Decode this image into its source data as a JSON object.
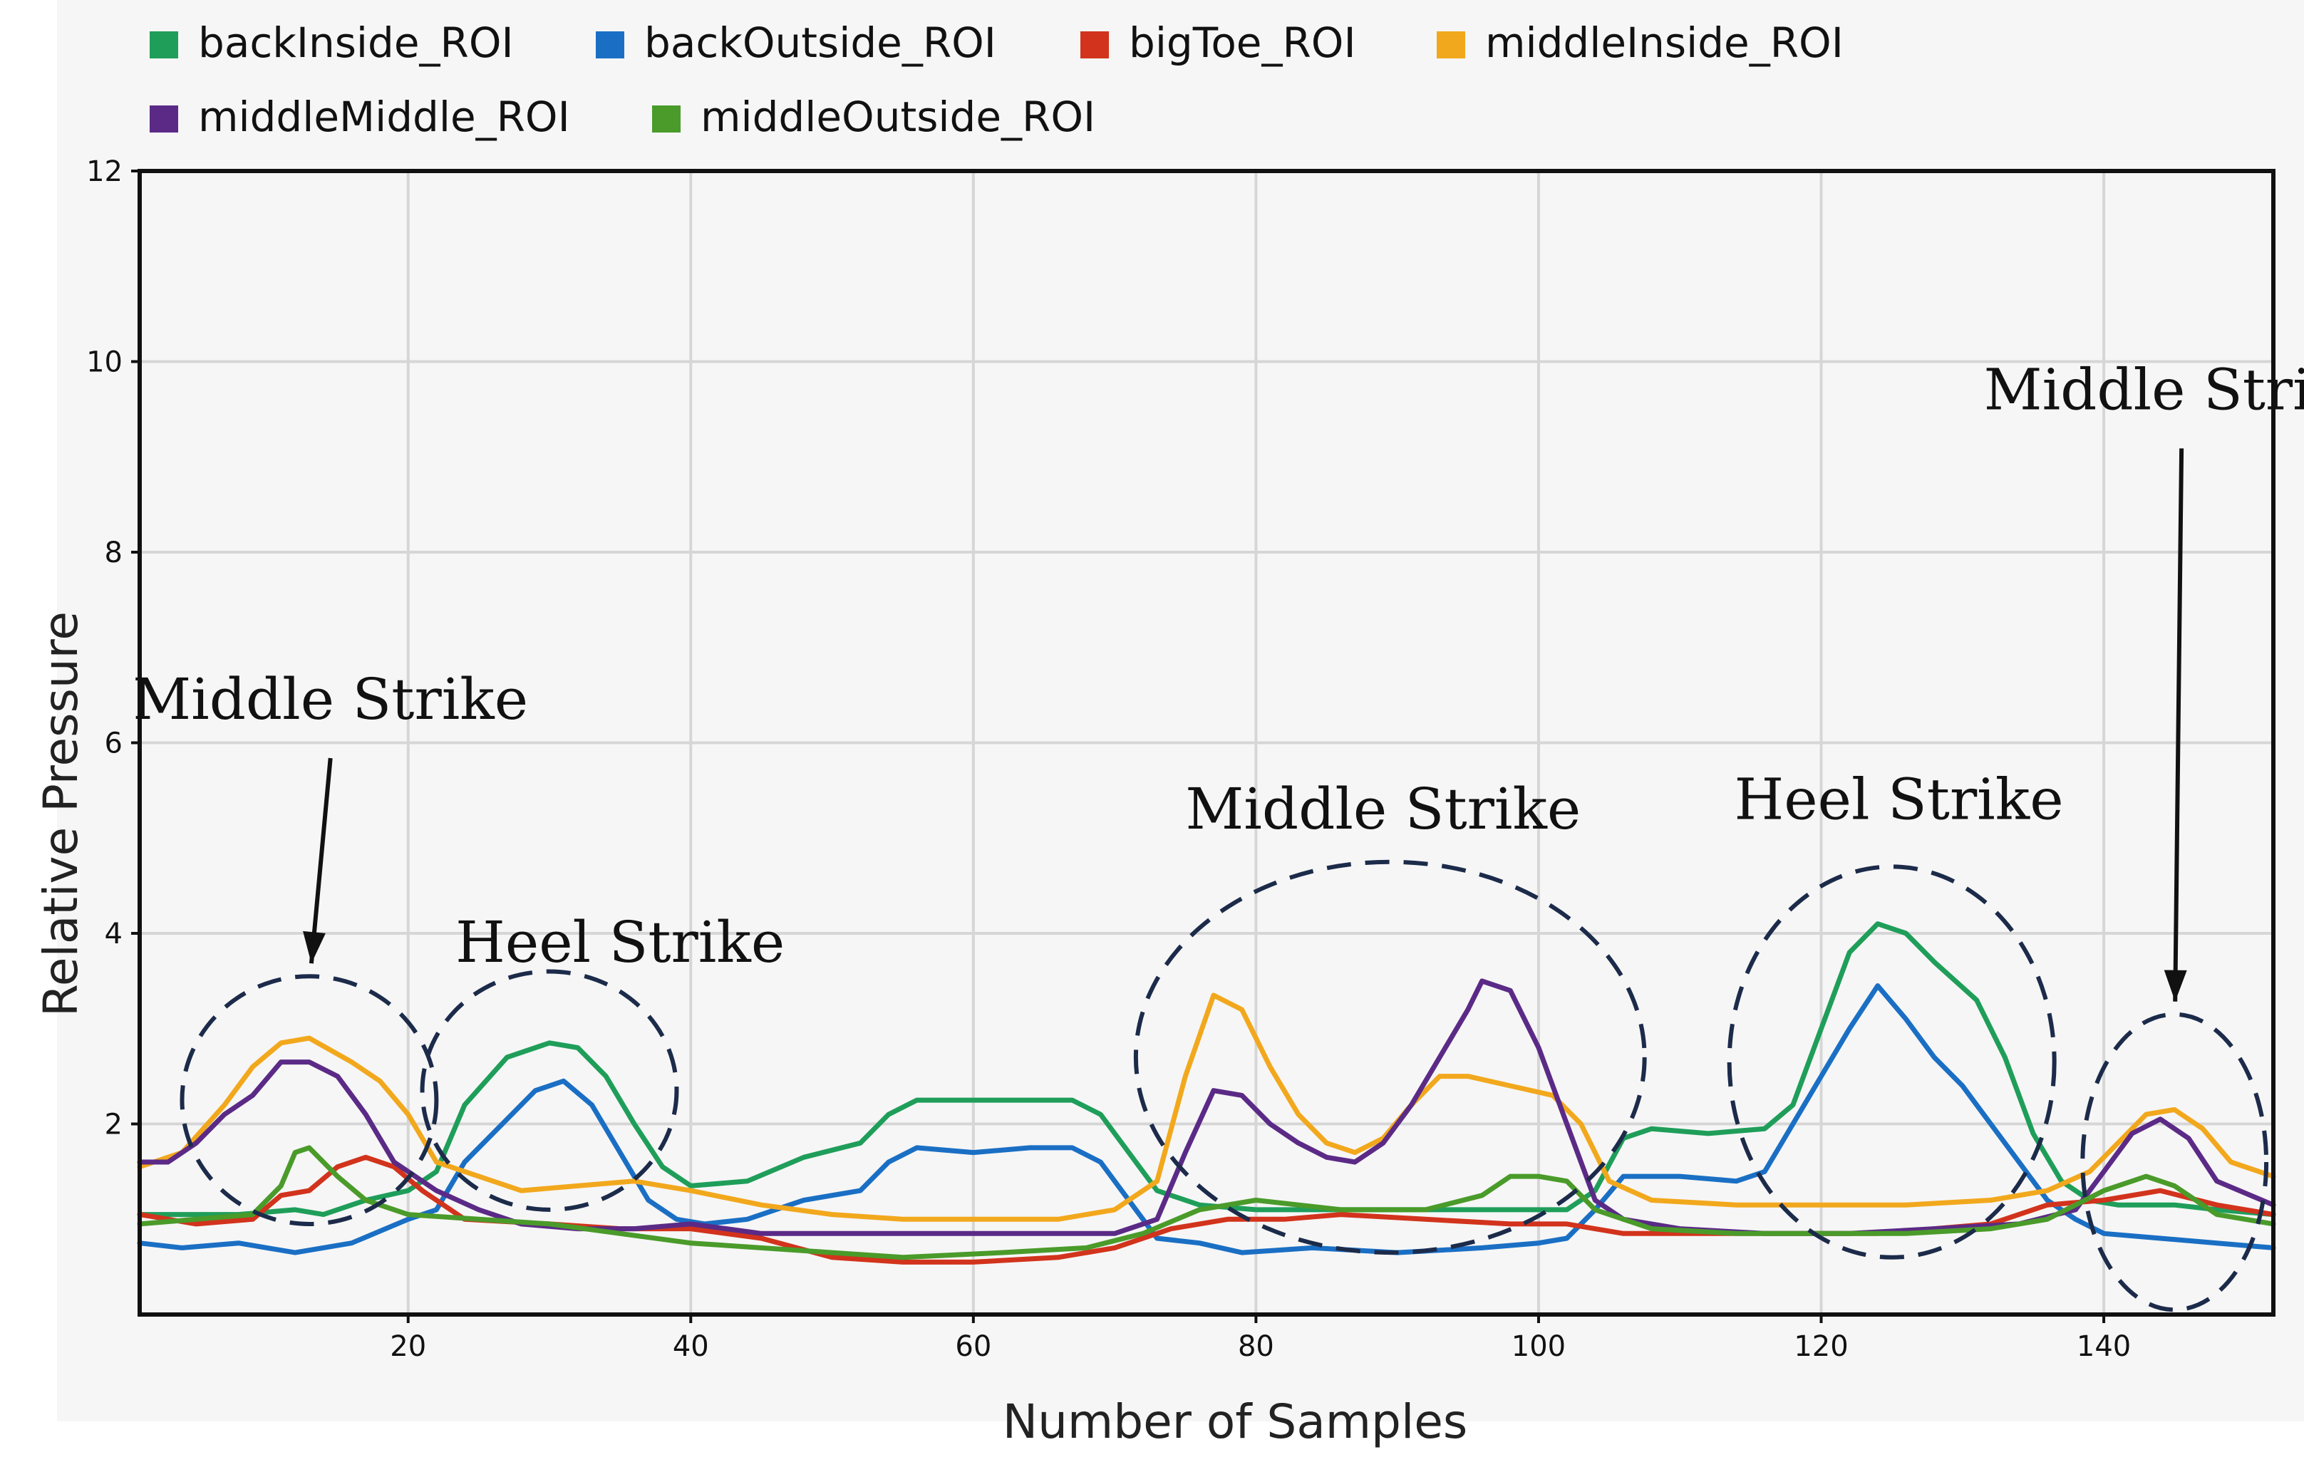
{
  "chart_data": {
    "type": "line",
    "title": "",
    "xlabel": "Number of Samples",
    "ylabel": "Relative Pressure",
    "xlim": [
      1,
      152
    ],
    "ylim": [
      0,
      12
    ],
    "grid": true,
    "legend_position": "top",
    "x_ticks": [
      20,
      40,
      60,
      80,
      100,
      120,
      140
    ],
    "y_ticks": [
      2,
      4,
      6,
      8,
      10,
      12
    ],
    "x_tick_labels": [
      "20",
      "40",
      "60",
      "80",
      "100",
      "120",
      "140"
    ],
    "y_tick_labels": [
      "2",
      "4",
      "6",
      "8",
      "10",
      "12"
    ],
    "series": [
      {
        "name": "backInside_ROI",
        "color": "#1f9e5a",
        "points": [
          [
            1,
            1.05
          ],
          [
            8,
            1.05
          ],
          [
            12,
            1.1
          ],
          [
            14,
            1.05
          ],
          [
            17,
            1.2
          ],
          [
            20,
            1.3
          ],
          [
            22,
            1.5
          ],
          [
            24,
            2.2
          ],
          [
            27,
            2.7
          ],
          [
            30,
            2.85
          ],
          [
            32,
            2.8
          ],
          [
            34,
            2.5
          ],
          [
            36,
            2.0
          ],
          [
            38,
            1.55
          ],
          [
            40,
            1.35
          ],
          [
            44,
            1.4
          ],
          [
            48,
            1.65
          ],
          [
            52,
            1.8
          ],
          [
            54,
            2.1
          ],
          [
            56,
            2.25
          ],
          [
            60,
            2.25
          ],
          [
            64,
            2.25
          ],
          [
            67,
            2.25
          ],
          [
            69,
            2.1
          ],
          [
            71,
            1.7
          ],
          [
            73,
            1.3
          ],
          [
            76,
            1.15
          ],
          [
            80,
            1.1
          ],
          [
            90,
            1.1
          ],
          [
            100,
            1.1
          ],
          [
            102,
            1.1
          ],
          [
            104,
            1.3
          ],
          [
            106,
            1.85
          ],
          [
            108,
            1.95
          ],
          [
            112,
            1.9
          ],
          [
            116,
            1.95
          ],
          [
            118,
            2.2
          ],
          [
            120,
            3.0
          ],
          [
            122,
            3.8
          ],
          [
            124,
            4.1
          ],
          [
            126,
            4.0
          ],
          [
            128,
            3.7
          ],
          [
            131,
            3.3
          ],
          [
            133,
            2.7
          ],
          [
            135,
            1.9
          ],
          [
            137,
            1.4
          ],
          [
            139,
            1.2
          ],
          [
            141,
            1.15
          ],
          [
            145,
            1.15
          ],
          [
            148,
            1.1
          ],
          [
            152,
            1.05
          ]
        ]
      },
      {
        "name": "backOutside_ROI",
        "color": "#1a6fc4",
        "points": [
          [
            1,
            0.75
          ],
          [
            4,
            0.7
          ],
          [
            8,
            0.75
          ],
          [
            12,
            0.65
          ],
          [
            16,
            0.75
          ],
          [
            20,
            1.0
          ],
          [
            22,
            1.1
          ],
          [
            24,
            1.6
          ],
          [
            27,
            2.05
          ],
          [
            29,
            2.35
          ],
          [
            31,
            2.45
          ],
          [
            33,
            2.2
          ],
          [
            35,
            1.7
          ],
          [
            37,
            1.2
          ],
          [
            39,
            1.0
          ],
          [
            41,
            0.95
          ],
          [
            44,
            1.0
          ],
          [
            48,
            1.2
          ],
          [
            52,
            1.3
          ],
          [
            54,
            1.6
          ],
          [
            56,
            1.75
          ],
          [
            60,
            1.7
          ],
          [
            64,
            1.75
          ],
          [
            67,
            1.75
          ],
          [
            69,
            1.6
          ],
          [
            71,
            1.2
          ],
          [
            73,
            0.8
          ],
          [
            76,
            0.75
          ],
          [
            79,
            0.65
          ],
          [
            84,
            0.7
          ],
          [
            90,
            0.65
          ],
          [
            96,
            0.7
          ],
          [
            100,
            0.75
          ],
          [
            102,
            0.8
          ],
          [
            104,
            1.1
          ],
          [
            106,
            1.45
          ],
          [
            110,
            1.45
          ],
          [
            114,
            1.4
          ],
          [
            116,
            1.5
          ],
          [
            118,
            2.0
          ],
          [
            120,
            2.5
          ],
          [
            122,
            3.0
          ],
          [
            124,
            3.45
          ],
          [
            126,
            3.1
          ],
          [
            128,
            2.7
          ],
          [
            130,
            2.4
          ],
          [
            132,
            2.0
          ],
          [
            134,
            1.6
          ],
          [
            136,
            1.2
          ],
          [
            138,
            1.0
          ],
          [
            140,
            0.85
          ],
          [
            144,
            0.8
          ],
          [
            148,
            0.75
          ],
          [
            152,
            0.7
          ]
        ]
      },
      {
        "name": "bigToe_ROI",
        "color": "#d2331c",
        "points": [
          [
            1,
            1.05
          ],
          [
            5,
            0.95
          ],
          [
            9,
            1.0
          ],
          [
            11,
            1.25
          ],
          [
            13,
            1.3
          ],
          [
            15,
            1.55
          ],
          [
            17,
            1.65
          ],
          [
            19,
            1.55
          ],
          [
            21,
            1.3
          ],
          [
            24,
            1.0
          ],
          [
            30,
            0.95
          ],
          [
            35,
            0.9
          ],
          [
            40,
            0.9
          ],
          [
            45,
            0.8
          ],
          [
            50,
            0.6
          ],
          [
            55,
            0.55
          ],
          [
            60,
            0.55
          ],
          [
            66,
            0.6
          ],
          [
            70,
            0.7
          ],
          [
            74,
            0.9
          ],
          [
            78,
            1.0
          ],
          [
            82,
            1.0
          ],
          [
            86,
            1.05
          ],
          [
            92,
            1.0
          ],
          [
            98,
            0.95
          ],
          [
            102,
            0.95
          ],
          [
            106,
            0.85
          ],
          [
            112,
            0.85
          ],
          [
            118,
            0.85
          ],
          [
            124,
            0.85
          ],
          [
            128,
            0.9
          ],
          [
            132,
            0.95
          ],
          [
            136,
            1.15
          ],
          [
            140,
            1.2
          ],
          [
            144,
            1.3
          ],
          [
            148,
            1.15
          ],
          [
            152,
            1.05
          ]
        ]
      },
      {
        "name": "middleInside_ROI",
        "color": "#f2a81d",
        "points": [
          [
            1,
            1.55
          ],
          [
            4,
            1.7
          ],
          [
            7,
            2.2
          ],
          [
            9,
            2.6
          ],
          [
            11,
            2.85
          ],
          [
            13,
            2.9
          ],
          [
            16,
            2.65
          ],
          [
            18,
            2.45
          ],
          [
            20,
            2.1
          ],
          [
            22,
            1.6
          ],
          [
            25,
            1.45
          ],
          [
            28,
            1.3
          ],
          [
            32,
            1.35
          ],
          [
            36,
            1.4
          ],
          [
            40,
            1.3
          ],
          [
            45,
            1.15
          ],
          [
            50,
            1.05
          ],
          [
            55,
            1.0
          ],
          [
            60,
            1.0
          ],
          [
            66,
            1.0
          ],
          [
            70,
            1.1
          ],
          [
            73,
            1.4
          ],
          [
            75,
            2.5
          ],
          [
            77,
            3.35
          ],
          [
            79,
            3.2
          ],
          [
            81,
            2.6
          ],
          [
            83,
            2.1
          ],
          [
            85,
            1.8
          ],
          [
            87,
            1.7
          ],
          [
            89,
            1.85
          ],
          [
            91,
            2.2
          ],
          [
            93,
            2.5
          ],
          [
            95,
            2.5
          ],
          [
            98,
            2.4
          ],
          [
            101,
            2.3
          ],
          [
            103,
            2.0
          ],
          [
            105,
            1.4
          ],
          [
            108,
            1.2
          ],
          [
            114,
            1.15
          ],
          [
            120,
            1.15
          ],
          [
            126,
            1.15
          ],
          [
            132,
            1.2
          ],
          [
            136,
            1.3
          ],
          [
            139,
            1.5
          ],
          [
            141,
            1.8
          ],
          [
            143,
            2.1
          ],
          [
            145,
            2.15
          ],
          [
            147,
            1.95
          ],
          [
            149,
            1.6
          ],
          [
            152,
            1.45
          ]
        ]
      },
      {
        "name": "middleMiddle_ROI",
        "color": "#5b2a86",
        "points": [
          [
            1,
            1.6
          ],
          [
            3,
            1.6
          ],
          [
            5,
            1.8
          ],
          [
            7,
            2.1
          ],
          [
            9,
            2.3
          ],
          [
            11,
            2.65
          ],
          [
            13,
            2.65
          ],
          [
            15,
            2.5
          ],
          [
            17,
            2.1
          ],
          [
            19,
            1.6
          ],
          [
            22,
            1.3
          ],
          [
            25,
            1.1
          ],
          [
            28,
            0.95
          ],
          [
            32,
            0.9
          ],
          [
            36,
            0.9
          ],
          [
            40,
            0.95
          ],
          [
            45,
            0.85
          ],
          [
            55,
            0.85
          ],
          [
            65,
            0.85
          ],
          [
            70,
            0.85
          ],
          [
            73,
            1.0
          ],
          [
            75,
            1.7
          ],
          [
            77,
            2.35
          ],
          [
            79,
            2.3
          ],
          [
            81,
            2.0
          ],
          [
            83,
            1.8
          ],
          [
            85,
            1.65
          ],
          [
            87,
            1.6
          ],
          [
            89,
            1.8
          ],
          [
            91,
            2.2
          ],
          [
            93,
            2.7
          ],
          [
            95,
            3.2
          ],
          [
            96,
            3.5
          ],
          [
            98,
            3.4
          ],
          [
            100,
            2.8
          ],
          [
            102,
            2.0
          ],
          [
            104,
            1.2
          ],
          [
            106,
            1.0
          ],
          [
            110,
            0.9
          ],
          [
            116,
            0.85
          ],
          [
            122,
            0.85
          ],
          [
            128,
            0.9
          ],
          [
            134,
            0.95
          ],
          [
            138,
            1.1
          ],
          [
            140,
            1.5
          ],
          [
            142,
            1.9
          ],
          [
            144,
            2.05
          ],
          [
            146,
            1.85
          ],
          [
            148,
            1.4
          ],
          [
            152,
            1.15
          ]
        ]
      },
      {
        "name": "middleOutside_ROI",
        "color": "#4a9b2a",
        "points": [
          [
            1,
            0.95
          ],
          [
            5,
            1.0
          ],
          [
            9,
            1.05
          ],
          [
            11,
            1.35
          ],
          [
            12,
            1.7
          ],
          [
            13,
            1.75
          ],
          [
            15,
            1.45
          ],
          [
            17,
            1.2
          ],
          [
            20,
            1.05
          ],
          [
            25,
            1.0
          ],
          [
            30,
            0.95
          ],
          [
            35,
            0.85
          ],
          [
            40,
            0.75
          ],
          [
            50,
            0.65
          ],
          [
            55,
            0.6
          ],
          [
            62,
            0.65
          ],
          [
            68,
            0.7
          ],
          [
            72,
            0.85
          ],
          [
            76,
            1.1
          ],
          [
            80,
            1.2
          ],
          [
            86,
            1.1
          ],
          [
            92,
            1.1
          ],
          [
            96,
            1.25
          ],
          [
            98,
            1.45
          ],
          [
            100,
            1.45
          ],
          [
            102,
            1.4
          ],
          [
            104,
            1.1
          ],
          [
            108,
            0.9
          ],
          [
            114,
            0.85
          ],
          [
            120,
            0.85
          ],
          [
            126,
            0.85
          ],
          [
            132,
            0.9
          ],
          [
            136,
            1.0
          ],
          [
            140,
            1.3
          ],
          [
            143,
            1.45
          ],
          [
            145,
            1.35
          ],
          [
            148,
            1.05
          ],
          [
            152,
            0.95
          ]
        ]
      }
    ],
    "annotations": [
      {
        "text": "Middle Strike",
        "center": [
          13,
          2.25
        ],
        "radius_x": 9,
        "radius_y": 1.3,
        "label": [
          14.5,
          6.25
        ],
        "arrow": true
      },
      {
        "text": "Heel Strike",
        "center": [
          30,
          2.35
        ],
        "radius_x": 9,
        "radius_y": 1.25,
        "label": [
          35,
          3.7
        ],
        "arrow": false
      },
      {
        "text": "Middle Strike",
        "center": [
          89.5,
          2.7
        ],
        "radius_x": 18,
        "radius_y": 2.05,
        "label": [
          89,
          5.1
        ],
        "arrow": false
      },
      {
        "text": "Heel Strike",
        "center": [
          125,
          2.65
        ],
        "radius_x": 11.5,
        "radius_y": 2.05,
        "label": [
          125.5,
          5.2
        ],
        "arrow": false
      },
      {
        "text": "Middle Strike",
        "center": [
          145,
          1.6
        ],
        "radius_x": 6.5,
        "radius_y": 1.55,
        "label": [
          145.5,
          9.5
        ],
        "arrow": true
      }
    ]
  }
}
